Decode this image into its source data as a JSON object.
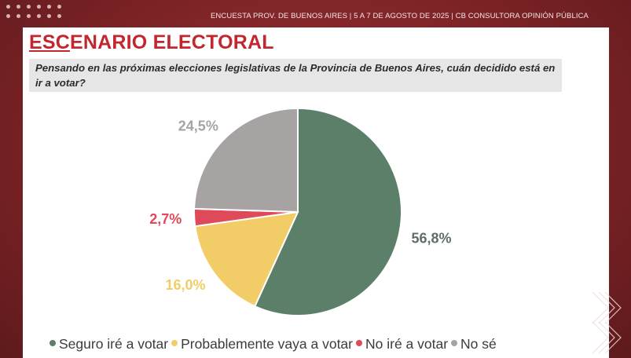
{
  "header": {
    "text": "ENCUESTA PROV. DE BUENOS AIRES | 5 A 7 DE AGOSTO DE 2025 | CB CONSULTORA OPINIÓN PÚBLICA"
  },
  "slide": {
    "title_underlined": "ESC",
    "title_rest": "ENARIO ELECTORAL",
    "question": "Pensando en las próximas elecciones legislativas de la Provincia de Buenos Aires, cuán decidido está en ir a votar?"
  },
  "colors": {
    "accent": "#c1272d",
    "background": "#7f2427"
  },
  "chart_data": {
    "type": "pie",
    "title": "",
    "start_angle_deg": 0,
    "direction": "clockwise",
    "legend_position": "bottom",
    "slices": [
      {
        "name": "Seguro iré a votar",
        "value": 56.8,
        "label": "56,8%",
        "color": "#5b7f68",
        "label_color": "#5f6e66"
      },
      {
        "name": "Probablemente vaya a votar",
        "value": 16.0,
        "label": "16,0%",
        "color": "#f1cc67",
        "label_color": "#f1cc67"
      },
      {
        "name": "No iré a votar",
        "value": 2.7,
        "label": "2,7%",
        "color": "#de4a5a",
        "label_color": "#de4a5a"
      },
      {
        "name": "No sé",
        "value": 24.5,
        "label": "24,5%",
        "color": "#a8a3a3",
        "label_color": "#a8a3a3"
      }
    ]
  }
}
